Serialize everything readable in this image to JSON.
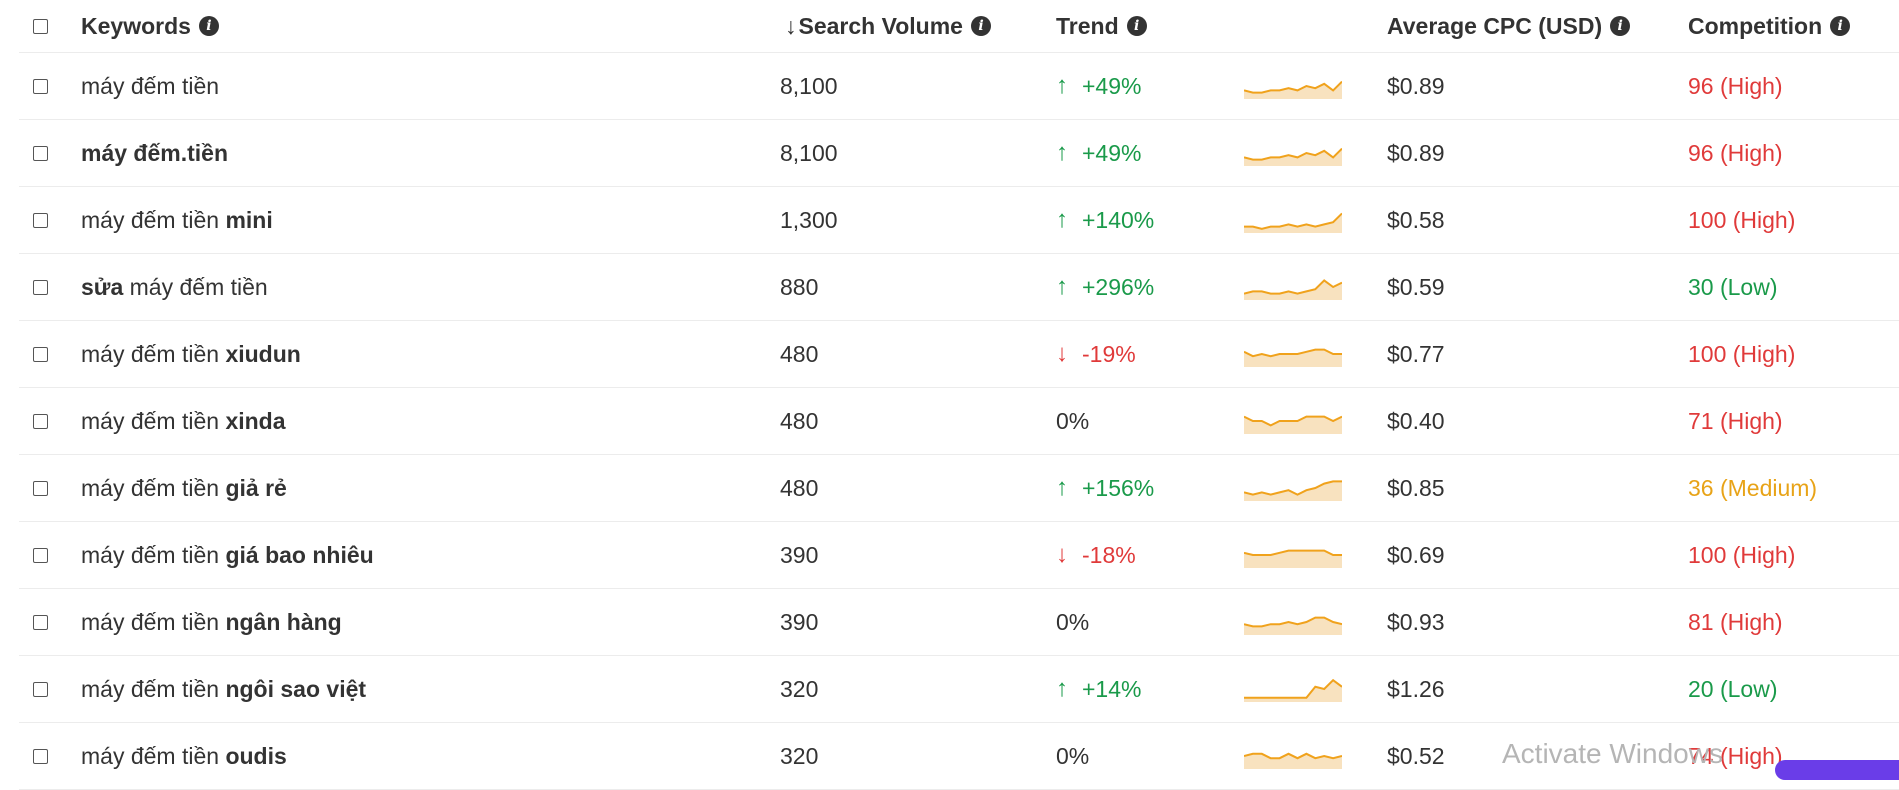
{
  "header": {
    "keywords": "Keywords",
    "sort_arrow": "↓",
    "search_volume": "Search Volume",
    "trend": "Trend",
    "cpc": "Average CPC (USD)",
    "competition": "Competition",
    "info_glyph": "i"
  },
  "colors": {
    "up": "#1a9a4a",
    "down": "#e03a3a",
    "medium": "#e8a317",
    "spark_line": "#f0a21c",
    "spark_fill": "#f8e2bf"
  },
  "rows": [
    {
      "kw_base": "máy đếm tiền",
      "kw_bold": "",
      "kw_order": "base-first",
      "volume": "8,100",
      "dir": "up",
      "trend": "+49%",
      "cpc": "$0.89",
      "comp": "96 (High)",
      "level": "high",
      "spark": [
        3,
        2,
        2,
        3,
        3,
        4,
        3,
        5,
        4,
        6,
        3,
        7
      ]
    },
    {
      "kw_base": "",
      "kw_bold": "máy đếm.tiền",
      "kw_order": "bold-only",
      "volume": "8,100",
      "dir": "up",
      "trend": "+49%",
      "cpc": "$0.89",
      "comp": "96 (High)",
      "level": "high",
      "spark": [
        3,
        2,
        2,
        3,
        3,
        4,
        3,
        5,
        4,
        6,
        3,
        7
      ]
    },
    {
      "kw_base": "máy đếm tiền",
      "kw_bold": "mini",
      "kw_order": "base-first",
      "volume": "1,300",
      "dir": "up",
      "trend": "+140%",
      "cpc": "$0.58",
      "comp": "100 (High)",
      "level": "high",
      "spark": [
        2,
        2,
        1,
        2,
        2,
        3,
        2,
        3,
        2,
        3,
        4,
        8
      ]
    },
    {
      "kw_base": "máy đếm tiền",
      "kw_bold": "sửa",
      "kw_order": "bold-first",
      "volume": "880",
      "dir": "up",
      "trend": "+296%",
      "cpc": "$0.59",
      "comp": "30 (Low)",
      "level": "low",
      "spark": [
        2,
        3,
        3,
        2,
        2,
        3,
        2,
        3,
        4,
        8,
        5,
        7
      ]
    },
    {
      "kw_base": "máy đếm tiền",
      "kw_bold": "xiudun",
      "kw_order": "base-first",
      "volume": "480",
      "dir": "down",
      "trend": "-19%",
      "cpc": "$0.77",
      "comp": "100 (High)",
      "level": "high",
      "spark": [
        6,
        4,
        5,
        4,
        5,
        5,
        5,
        6,
        7,
        7,
        5,
        5
      ]
    },
    {
      "kw_base": "máy đếm tiền",
      "kw_bold": "xinda",
      "kw_order": "base-first",
      "volume": "480",
      "dir": "flat",
      "trend": "0%",
      "cpc": "$0.40",
      "comp": "71 (High)",
      "level": "high",
      "spark": [
        7,
        5,
        5,
        3,
        5,
        5,
        5,
        7,
        7,
        7,
        5,
        7
      ]
    },
    {
      "kw_base": "máy đếm tiền",
      "kw_bold": "giả rẻ",
      "kw_order": "base-first",
      "volume": "480",
      "dir": "up",
      "trend": "+156%",
      "cpc": "$0.85",
      "comp": "36 (Medium)",
      "level": "medium",
      "spark": [
        3,
        2,
        3,
        2,
        3,
        4,
        2,
        4,
        5,
        7,
        8,
        8
      ]
    },
    {
      "kw_base": "máy đếm tiền",
      "kw_bold": "giá bao nhiêu",
      "kw_order": "base-first",
      "volume": "390",
      "dir": "down",
      "trend": "-18%",
      "cpc": "$0.69",
      "comp": "100 (High)",
      "level": "high",
      "spark": [
        6,
        5,
        5,
        5,
        6,
        7,
        7,
        7,
        7,
        7,
        5,
        5
      ]
    },
    {
      "kw_base": "máy đếm tiền",
      "kw_bold": "ngân hàng",
      "kw_order": "base-first",
      "volume": "390",
      "dir": "flat",
      "trend": "0%",
      "cpc": "$0.93",
      "comp": "81 (High)",
      "level": "high",
      "spark": [
        4,
        3,
        3,
        4,
        4,
        5,
        4,
        5,
        7,
        7,
        5,
        4
      ]
    },
    {
      "kw_base": "máy đếm tiền",
      "kw_bold": "ngôi sao việt",
      "kw_order": "base-first",
      "volume": "320",
      "dir": "up",
      "trend": "+14%",
      "cpc": "$1.26",
      "comp": "20 (Low)",
      "level": "low",
      "spark": [
        1,
        1,
        1,
        1,
        1,
        1,
        1,
        1,
        6,
        5,
        9,
        6
      ]
    },
    {
      "kw_base": "máy đếm tiền",
      "kw_bold": "oudis",
      "kw_order": "base-first",
      "volume": "320",
      "dir": "flat",
      "trend": "0%",
      "cpc": "$0.52",
      "comp": "74 (High)",
      "level": "high",
      "spark": [
        5,
        6,
        6,
        4,
        4,
        6,
        4,
        6,
        4,
        5,
        4,
        5
      ]
    }
  ],
  "watermark": "Activate Windows"
}
